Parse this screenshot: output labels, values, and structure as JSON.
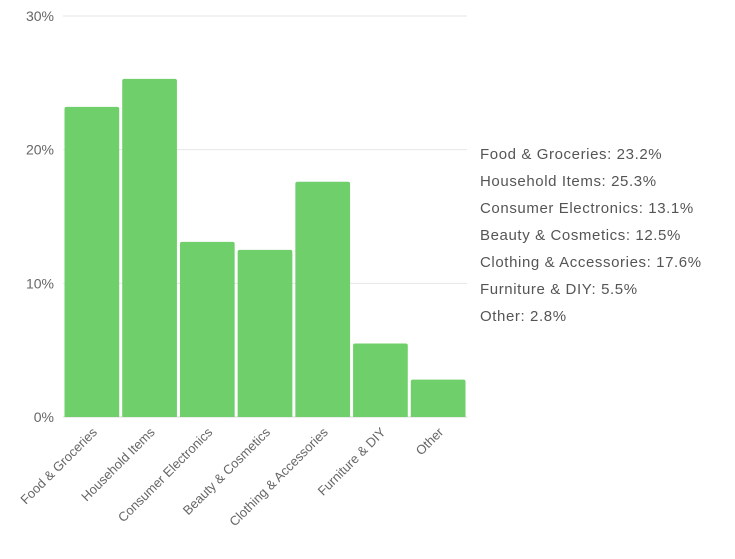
{
  "chart_data": {
    "type": "bar",
    "categories": [
      "Food & Groceries",
      "Household Items",
      "Consumer Electronics",
      "Beauty & Cosmetics",
      "Clothing & Accessories",
      "Furniture & DIY",
      "Other"
    ],
    "values": [
      23.2,
      25.3,
      13.1,
      12.5,
      17.6,
      5.5,
      2.8
    ],
    "ylim": [
      0,
      30
    ],
    "yticks": [
      {
        "value": 0,
        "label": "0%"
      },
      {
        "value": 10,
        "label": "10%"
      },
      {
        "value": 20,
        "label": "20%"
      },
      {
        "value": 30,
        "label": "30%"
      }
    ],
    "grid": true,
    "legend_position": "right",
    "legend_items": [
      "Food & Groceries: 23.2%",
      "Household Items: 25.3%",
      "Consumer Electronics: 13.1%",
      "Beauty & Cosmetics: 12.5%",
      "Clothing & Accessories: 17.6%",
      "Furniture & DIY: 5.5%",
      "Other: 2.8%"
    ],
    "bar_color": "#6fcf6a",
    "grid_color": "#e6e6e6",
    "axis_color": "#d9d9d9"
  }
}
